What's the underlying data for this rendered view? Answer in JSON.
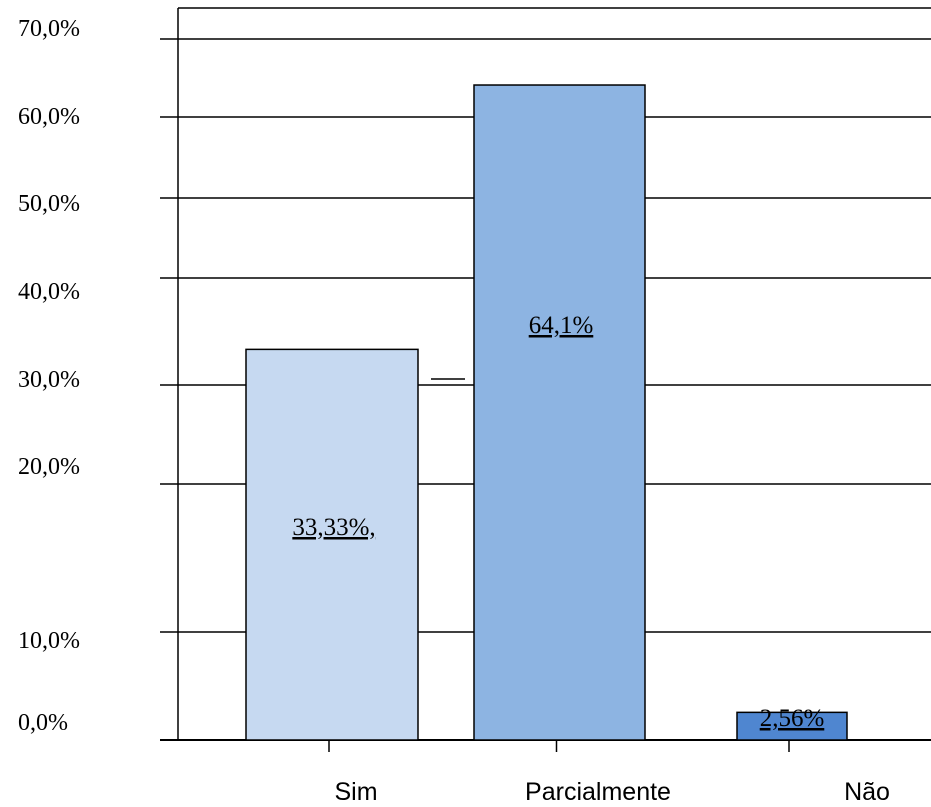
{
  "chart_data": {
    "type": "bar",
    "categories": [
      "Sim",
      "Parcialmente",
      "Não"
    ],
    "values": [
      33.33,
      64.1,
      2.56
    ],
    "data_labels": [
      "33,33%,",
      "64,1%",
      "2,56%"
    ],
    "y_tick_labels": [
      "0,0%",
      "10,0%",
      "20,0%",
      "30,0%",
      "40,0%",
      "50,0%",
      "60,0%",
      "70,0%"
    ],
    "y_tick_values": [
      0,
      10,
      20,
      30,
      40,
      50,
      60,
      70
    ],
    "ylim": [
      0,
      70
    ],
    "grid": true,
    "colors": [
      "#c6d9f1",
      "#8db4e2",
      "#4f86d0"
    ],
    "border_color": "#000000"
  }
}
